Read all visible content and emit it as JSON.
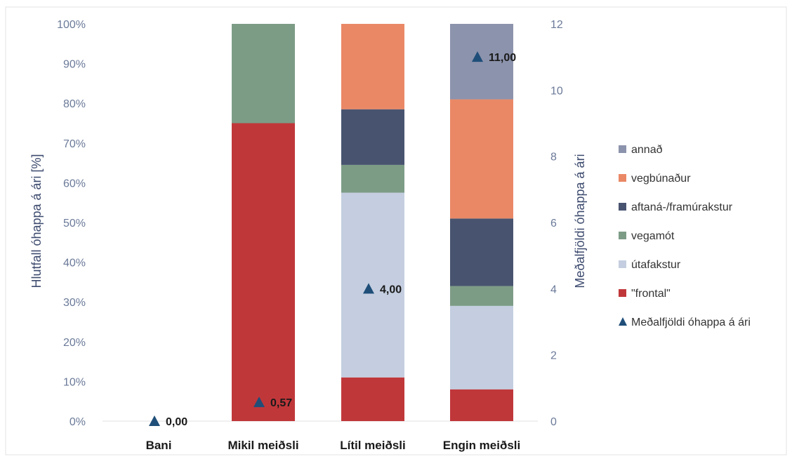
{
  "chart_data": {
    "type": "bar",
    "stacked": true,
    "percent_stacked": true,
    "categories": [
      "Bani",
      "Mikil meiðsli",
      "Lítil meiðsli",
      "Engin meiðsli"
    ],
    "ylabel": "Hlutfall óhappa á ári [%]",
    "ylim": [
      0,
      100
    ],
    "y_ticks": [
      "0%",
      "10%",
      "20%",
      "30%",
      "40%",
      "50%",
      "60%",
      "70%",
      "80%",
      "90%",
      "100%"
    ],
    "y2label": "Meðalfjöldi óhappa á ári",
    "y2lim": [
      0,
      12
    ],
    "y2_ticks": [
      "0",
      "2",
      "4",
      "6",
      "8",
      "10",
      "12"
    ],
    "legend_position": "right",
    "grid": false,
    "series": [
      {
        "name": "\"frontal\"",
        "color": "#c0373a",
        "values": [
          0,
          75,
          11,
          8
        ]
      },
      {
        "name": "útafakstur",
        "color": "#c4cee0",
        "values": [
          0,
          0,
          46.5,
          21
        ]
      },
      {
        "name": "vegamót",
        "color": "#7d9c86",
        "values": [
          0,
          25,
          7,
          5
        ]
      },
      {
        "name": "aftaná-/framúrakstur",
        "color": "#48546f",
        "values": [
          0,
          0,
          14,
          17
        ]
      },
      {
        "name": "vegbúnaður",
        "color": "#ea8866",
        "values": [
          0,
          0,
          21.5,
          30
        ]
      },
      {
        "name": "annað",
        "color": "#8c93ac",
        "values": [
          0,
          0,
          0,
          19
        ]
      }
    ],
    "line_series": {
      "name": "Meðalfjöldi óhappa á ári",
      "axis": "secondary",
      "marker": "triangle",
      "color": "#1f4e79",
      "values": [
        0.0,
        0.57,
        4.0,
        11.0
      ],
      "labels": [
        "0,00",
        "0,57",
        "4,00",
        "11,00"
      ]
    },
    "legend_order": [
      "annað",
      "vegbúnaður",
      "aftaná-/framúrakstur",
      "vegamót",
      "útafakstur",
      "\"frontal\"",
      "Meðalfjöldi óhappa á ári"
    ]
  }
}
